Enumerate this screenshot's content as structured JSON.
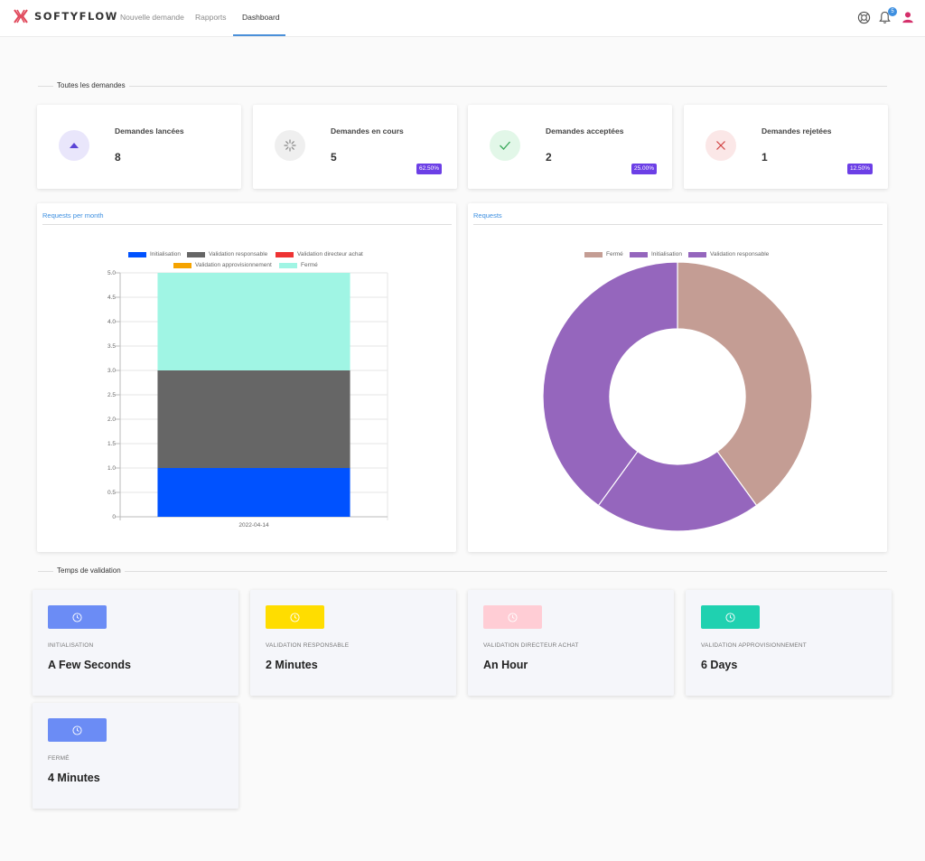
{
  "app": {
    "brand": "SOFTYFLOW",
    "accent": "#3d8fe0"
  },
  "nav": {
    "items": [
      {
        "label": "Nouvelle demande"
      },
      {
        "label": "Rapports"
      },
      {
        "label": "Dashboard",
        "active": true
      }
    ],
    "notifications_count": "5",
    "icons": [
      "support-icon",
      "bell-icon",
      "user-icon"
    ]
  },
  "sections": {
    "requests_title": "Toutes les demandes",
    "validation_title": "Temps de validation"
  },
  "stats": [
    {
      "label": "Demandes lancées",
      "value": "8",
      "icon": "arrow-up-icon",
      "color": "#5b45d6"
    },
    {
      "label": "Demandes en cours",
      "value": "5",
      "pct": "62.50%",
      "icon": "spinner-icon",
      "color": "#888888"
    },
    {
      "label": "Demandes acceptées",
      "value": "2",
      "pct": "25.00%",
      "icon": "check-icon",
      "color": "#3aa85a"
    },
    {
      "label": "Demandes rejetées",
      "value": "1",
      "pct": "12.50%",
      "icon": "close-icon",
      "color": "#d04040"
    }
  ],
  "charts": {
    "left_tab": "Requests per month",
    "right_tab": "Requests"
  },
  "chart_data": [
    {
      "type": "bar",
      "stacked": true,
      "categories": [
        "2022-04-14"
      ],
      "series": [
        {
          "name": "Initialisation",
          "values": [
            1
          ],
          "color": "#0052ff"
        },
        {
          "name": "Validation responsable",
          "values": [
            2
          ],
          "color": "#666666"
        },
        {
          "name": "Validation directeur achat",
          "values": [
            0
          ],
          "color": "#ee3333"
        },
        {
          "name": "Validation approvisionnement",
          "values": [
            0
          ],
          "color": "#f5a300"
        },
        {
          "name": "Fermé",
          "values": [
            2
          ],
          "color": "#a0f5e4"
        }
      ],
      "ylim": [
        0,
        5
      ],
      "yticks": [
        "0",
        "0.5",
        "1.0",
        "1.5",
        "2.0",
        "2.5",
        "3.0",
        "3.5",
        "4.0",
        "4.5",
        "5.0"
      ],
      "grid": true,
      "legend": "top"
    },
    {
      "type": "pie",
      "donut": true,
      "labels": [
        "Fermé",
        "Initialisation",
        "Validation responsable"
      ],
      "values": [
        2,
        1,
        2
      ],
      "colors": [
        "#c49d94",
        "#9566bd",
        "#9566bd"
      ],
      "legend": "top"
    }
  ],
  "validation": [
    {
      "label": "INITIALISATION",
      "value": "A Few Seconds",
      "color": "#6b8cf5",
      "icon": "clock-icon"
    },
    {
      "label": "VALIDATION RESPONSABLE",
      "value": "2 Minutes",
      "color": "#ffdd00",
      "icon": "clock-icon"
    },
    {
      "label": "VALIDATION DIRECTEUR ACHAT",
      "value": "An Hour",
      "color": "#ffcdd5",
      "icon": "clock-icon"
    },
    {
      "label": "VALIDATION APPROVISIONNEMENT",
      "value": "6 Days",
      "color": "#1fd1b0",
      "icon": "clock-icon"
    },
    {
      "label": "FERMÉ",
      "value": "4 Minutes",
      "color": "#6b8cf5",
      "icon": "clock-icon"
    }
  ]
}
